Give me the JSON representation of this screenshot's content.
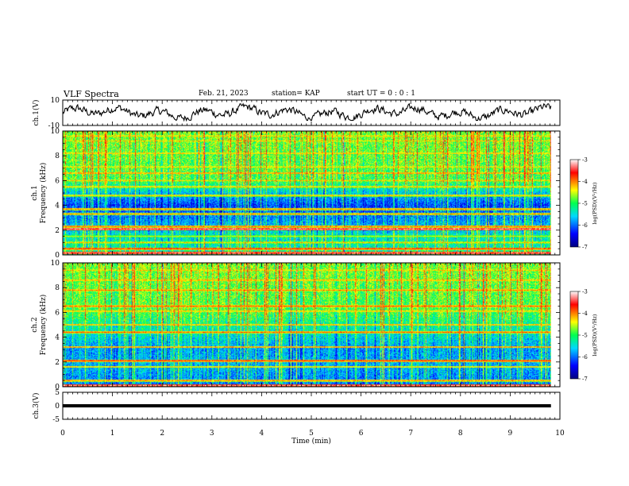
{
  "header": {
    "title": "VLF Spectra",
    "date": "Feb. 21, 2023",
    "station": "station= KAP",
    "start": "start  UT =  0 : 0  : 1"
  },
  "chart_data": [
    {
      "type": "line",
      "panel": "ch1-waveform",
      "ylabel": "ch.1(V)",
      "ylim": [
        -10,
        10
      ],
      "yticks": [
        "10",
        "-10"
      ],
      "xlim": [
        0,
        10
      ],
      "x_end": 9.82,
      "amplitude_approx": [
        -6,
        7
      ]
    },
    {
      "type": "heatmap",
      "panel": "ch1-spectrogram",
      "ylabel_line1": "ch.1",
      "ylabel_line2": "Frequency  (kHz)",
      "ylim": [
        0,
        10
      ],
      "yticks": [
        "0",
        "2",
        "4",
        "6",
        "8",
        "10"
      ],
      "xlim": [
        0,
        10
      ],
      "x_end": 9.82,
      "colorbar": {
        "label": "log(PSD)(V²/Hz)",
        "range": [
          -7,
          -3
        ],
        "ticks": [
          "-3",
          "-4",
          "-5",
          "-6",
          "-7"
        ]
      },
      "bands": [
        {
          "f": 0.15,
          "level": -3.2
        },
        {
          "f": 0.5,
          "level": -3.6
        },
        {
          "f": 1.0,
          "level": -4.2
        },
        {
          "f": 1.5,
          "level": -4.4
        },
        {
          "f": 2.1,
          "level": -3.1
        },
        {
          "f": 2.3,
          "level": -3.8
        },
        {
          "f": 3.3,
          "level": -4.0
        },
        {
          "f": 3.7,
          "level": -3.9
        },
        {
          "f": 4.8,
          "level": -4.1
        },
        {
          "f": 5.5,
          "level": -4.1
        },
        {
          "f": 6.0,
          "level": -4.2
        },
        {
          "f": 6.6,
          "level": -3.9
        },
        {
          "f": 7.1,
          "level": -4.2
        },
        {
          "f": 8.2,
          "level": -4.1
        },
        {
          "f": 9.2,
          "level": -4.3
        },
        {
          "f": 9.6,
          "level": -4.2
        }
      ],
      "background": [
        {
          "f": 0.0,
          "level": -5.2
        },
        {
          "f": 1.5,
          "level": -5.4
        },
        {
          "f": 3.0,
          "level": -5.9
        },
        {
          "f": 4.0,
          "level": -6.2
        },
        {
          "f": 5.0,
          "level": -5.6
        },
        {
          "f": 6.0,
          "level": -4.9
        },
        {
          "f": 8.0,
          "level": -4.8
        },
        {
          "f": 10.0,
          "level": -4.7
        }
      ]
    },
    {
      "type": "heatmap",
      "panel": "ch2-spectrogram",
      "ylabel_line1": "ch.2",
      "ylabel_line2": "Frequency  (kHz)",
      "ylim": [
        0,
        10
      ],
      "yticks": [
        "0",
        "2",
        "4",
        "6",
        "8",
        "10"
      ],
      "xlim": [
        0,
        10
      ],
      "x_end": 9.82,
      "colorbar": {
        "label": "log(PSD)(V²/Hz)",
        "range": [
          -7,
          -3
        ],
        "ticks": [
          "-3",
          "-4",
          "-5",
          "-6",
          "-7"
        ]
      },
      "bands": [
        {
          "f": 0.1,
          "level": -3.2
        },
        {
          "f": 0.5,
          "level": -3.9
        },
        {
          "f": 1.6,
          "level": -4.1
        },
        {
          "f": 2.1,
          "level": -3.6
        },
        {
          "f": 3.2,
          "level": -3.9
        },
        {
          "f": 4.4,
          "level": -3.8
        },
        {
          "f": 5.0,
          "level": -4.0
        },
        {
          "f": 6.1,
          "level": -4.1
        },
        {
          "f": 6.5,
          "level": -3.8
        },
        {
          "f": 7.8,
          "level": -3.9
        },
        {
          "f": 8.6,
          "level": -4.0
        },
        {
          "f": 9.4,
          "level": -4.2
        }
      ],
      "background": [
        {
          "f": 0.0,
          "level": -6.0
        },
        {
          "f": 1.5,
          "level": -5.7
        },
        {
          "f": 3.0,
          "level": -5.8
        },
        {
          "f": 4.0,
          "level": -5.5
        },
        {
          "f": 5.0,
          "level": -5.2
        },
        {
          "f": 6.0,
          "level": -4.9
        },
        {
          "f": 8.0,
          "level": -4.8
        },
        {
          "f": 10.0,
          "level": -4.7
        }
      ]
    },
    {
      "type": "line",
      "panel": "ch3-waveform",
      "ylabel": "ch.3(V)",
      "ylim": [
        -5,
        5
      ],
      "yticks": [
        "5",
        "0",
        "-5"
      ],
      "xlim": [
        0,
        10
      ],
      "xticks": [
        "0",
        "1",
        "2",
        "3",
        "4",
        "5",
        "6",
        "7",
        "8",
        "9",
        "10"
      ],
      "xlabel": "Time  (min)",
      "x_end": 9.82,
      "band_range": [
        -0.6,
        0.6
      ]
    }
  ]
}
